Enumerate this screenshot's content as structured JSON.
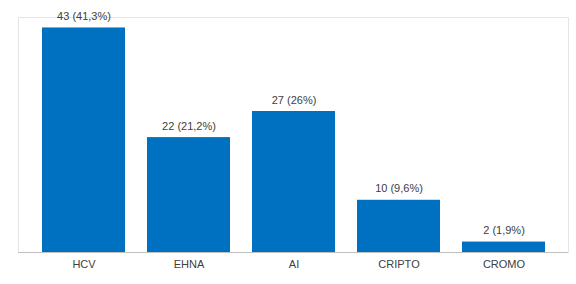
{
  "chart_data": {
    "type": "bar",
    "categories": [
      "HCV",
      "EHNA",
      "AI",
      "CRIPTO",
      "CROMO"
    ],
    "values": [
      43,
      22,
      27,
      10,
      2
    ],
    "value_labels": [
      "43 (41,3%)",
      "22 (21,2%)",
      "27 (26%)",
      "10 (9,6%)",
      "2 (1,9%)"
    ],
    "color": "#0070c0",
    "ylim": [
      0,
      45
    ],
    "yticks": [],
    "grid": false,
    "data_labels": true,
    "tick_labels": "x"
  }
}
